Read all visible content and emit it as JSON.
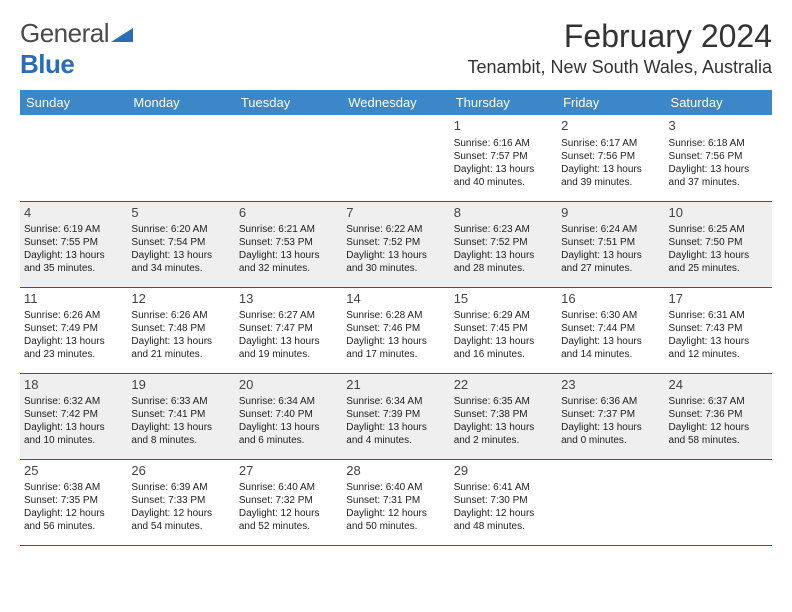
{
  "logo": {
    "part1": "General",
    "part2": "Blue"
  },
  "header": {
    "month_title": "February 2024",
    "location": "Tenambit, New South Wales, Australia"
  },
  "colors": {
    "header_bg": "#3b87c8",
    "header_text": "#ffffff",
    "row_border": "#2a5a8a",
    "shade_bg": "#efefef",
    "logo_gray": "#4a4a4a",
    "logo_blue": "#2a6db5"
  },
  "daynames": [
    "Sunday",
    "Monday",
    "Tuesday",
    "Wednesday",
    "Thursday",
    "Friday",
    "Saturday"
  ],
  "weeks": [
    {
      "shaded": false,
      "cells": [
        null,
        null,
        null,
        null,
        {
          "n": "1",
          "sr": "Sunrise: 6:16 AM",
          "ss": "Sunset: 7:57 PM",
          "d1": "Daylight: 13 hours",
          "d2": "and 40 minutes."
        },
        {
          "n": "2",
          "sr": "Sunrise: 6:17 AM",
          "ss": "Sunset: 7:56 PM",
          "d1": "Daylight: 13 hours",
          "d2": "and 39 minutes."
        },
        {
          "n": "3",
          "sr": "Sunrise: 6:18 AM",
          "ss": "Sunset: 7:56 PM",
          "d1": "Daylight: 13 hours",
          "d2": "and 37 minutes."
        }
      ]
    },
    {
      "shaded": true,
      "cells": [
        {
          "n": "4",
          "sr": "Sunrise: 6:19 AM",
          "ss": "Sunset: 7:55 PM",
          "d1": "Daylight: 13 hours",
          "d2": "and 35 minutes."
        },
        {
          "n": "5",
          "sr": "Sunrise: 6:20 AM",
          "ss": "Sunset: 7:54 PM",
          "d1": "Daylight: 13 hours",
          "d2": "and 34 minutes."
        },
        {
          "n": "6",
          "sr": "Sunrise: 6:21 AM",
          "ss": "Sunset: 7:53 PM",
          "d1": "Daylight: 13 hours",
          "d2": "and 32 minutes."
        },
        {
          "n": "7",
          "sr": "Sunrise: 6:22 AM",
          "ss": "Sunset: 7:52 PM",
          "d1": "Daylight: 13 hours",
          "d2": "and 30 minutes."
        },
        {
          "n": "8",
          "sr": "Sunrise: 6:23 AM",
          "ss": "Sunset: 7:52 PM",
          "d1": "Daylight: 13 hours",
          "d2": "and 28 minutes."
        },
        {
          "n": "9",
          "sr": "Sunrise: 6:24 AM",
          "ss": "Sunset: 7:51 PM",
          "d1": "Daylight: 13 hours",
          "d2": "and 27 minutes."
        },
        {
          "n": "10",
          "sr": "Sunrise: 6:25 AM",
          "ss": "Sunset: 7:50 PM",
          "d1": "Daylight: 13 hours",
          "d2": "and 25 minutes."
        }
      ]
    },
    {
      "shaded": false,
      "cells": [
        {
          "n": "11",
          "sr": "Sunrise: 6:26 AM",
          "ss": "Sunset: 7:49 PM",
          "d1": "Daylight: 13 hours",
          "d2": "and 23 minutes."
        },
        {
          "n": "12",
          "sr": "Sunrise: 6:26 AM",
          "ss": "Sunset: 7:48 PM",
          "d1": "Daylight: 13 hours",
          "d2": "and 21 minutes."
        },
        {
          "n": "13",
          "sr": "Sunrise: 6:27 AM",
          "ss": "Sunset: 7:47 PM",
          "d1": "Daylight: 13 hours",
          "d2": "and 19 minutes."
        },
        {
          "n": "14",
          "sr": "Sunrise: 6:28 AM",
          "ss": "Sunset: 7:46 PM",
          "d1": "Daylight: 13 hours",
          "d2": "and 17 minutes."
        },
        {
          "n": "15",
          "sr": "Sunrise: 6:29 AM",
          "ss": "Sunset: 7:45 PM",
          "d1": "Daylight: 13 hours",
          "d2": "and 16 minutes."
        },
        {
          "n": "16",
          "sr": "Sunrise: 6:30 AM",
          "ss": "Sunset: 7:44 PM",
          "d1": "Daylight: 13 hours",
          "d2": "and 14 minutes."
        },
        {
          "n": "17",
          "sr": "Sunrise: 6:31 AM",
          "ss": "Sunset: 7:43 PM",
          "d1": "Daylight: 13 hours",
          "d2": "and 12 minutes."
        }
      ]
    },
    {
      "shaded": true,
      "cells": [
        {
          "n": "18",
          "sr": "Sunrise: 6:32 AM",
          "ss": "Sunset: 7:42 PM",
          "d1": "Daylight: 13 hours",
          "d2": "and 10 minutes."
        },
        {
          "n": "19",
          "sr": "Sunrise: 6:33 AM",
          "ss": "Sunset: 7:41 PM",
          "d1": "Daylight: 13 hours",
          "d2": "and 8 minutes."
        },
        {
          "n": "20",
          "sr": "Sunrise: 6:34 AM",
          "ss": "Sunset: 7:40 PM",
          "d1": "Daylight: 13 hours",
          "d2": "and 6 minutes."
        },
        {
          "n": "21",
          "sr": "Sunrise: 6:34 AM",
          "ss": "Sunset: 7:39 PM",
          "d1": "Daylight: 13 hours",
          "d2": "and 4 minutes."
        },
        {
          "n": "22",
          "sr": "Sunrise: 6:35 AM",
          "ss": "Sunset: 7:38 PM",
          "d1": "Daylight: 13 hours",
          "d2": "and 2 minutes."
        },
        {
          "n": "23",
          "sr": "Sunrise: 6:36 AM",
          "ss": "Sunset: 7:37 PM",
          "d1": "Daylight: 13 hours",
          "d2": "and 0 minutes."
        },
        {
          "n": "24",
          "sr": "Sunrise: 6:37 AM",
          "ss": "Sunset: 7:36 PM",
          "d1": "Daylight: 12 hours",
          "d2": "and 58 minutes."
        }
      ]
    },
    {
      "shaded": false,
      "cells": [
        {
          "n": "25",
          "sr": "Sunrise: 6:38 AM",
          "ss": "Sunset: 7:35 PM",
          "d1": "Daylight: 12 hours",
          "d2": "and 56 minutes."
        },
        {
          "n": "26",
          "sr": "Sunrise: 6:39 AM",
          "ss": "Sunset: 7:33 PM",
          "d1": "Daylight: 12 hours",
          "d2": "and 54 minutes."
        },
        {
          "n": "27",
          "sr": "Sunrise: 6:40 AM",
          "ss": "Sunset: 7:32 PM",
          "d1": "Daylight: 12 hours",
          "d2": "and 52 minutes."
        },
        {
          "n": "28",
          "sr": "Sunrise: 6:40 AM",
          "ss": "Sunset: 7:31 PM",
          "d1": "Daylight: 12 hours",
          "d2": "and 50 minutes."
        },
        {
          "n": "29",
          "sr": "Sunrise: 6:41 AM",
          "ss": "Sunset: 7:30 PM",
          "d1": "Daylight: 12 hours",
          "d2": "and 48 minutes."
        },
        null,
        null
      ]
    }
  ]
}
